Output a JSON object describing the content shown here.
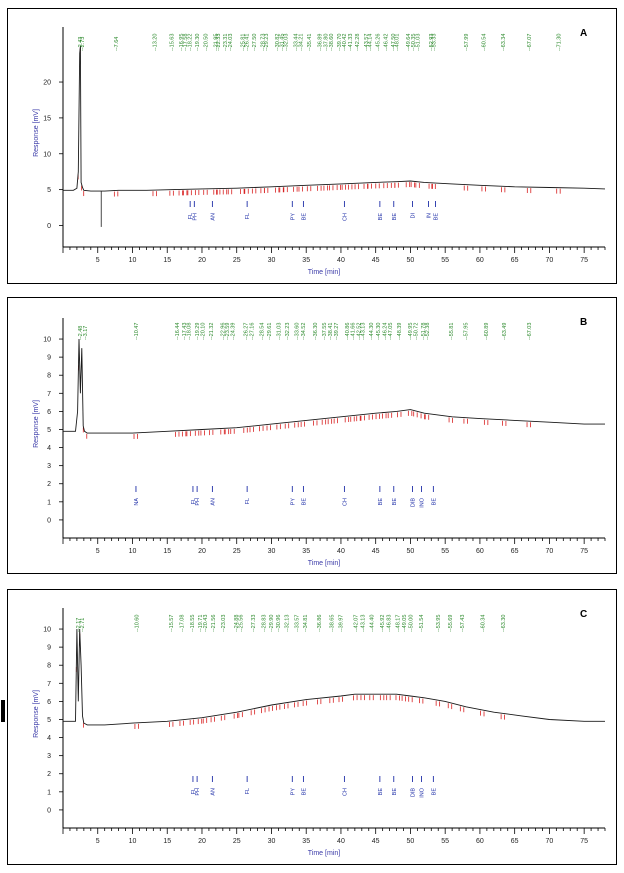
{
  "colors": {
    "trace": "#1a1a1a",
    "peak_label": "#2e8b2e",
    "integration_mark": "#d82020",
    "compound_label": "#1f2fa8",
    "axis_label": "#3a3aa8",
    "axis": "#000000"
  },
  "chart_data": [
    {
      "type": "line",
      "panel_label": "A",
      "xlabel": "Time [min]",
      "ylabel": "Response [mV]",
      "xlim": [
        0,
        78
      ],
      "ylim": [
        -3,
        26
      ],
      "x_ticks": [
        5,
        10,
        15,
        20,
        25,
        30,
        35,
        40,
        45,
        50,
        55,
        60,
        65,
        70,
        75
      ],
      "y_ticks": [
        0,
        5,
        10,
        15,
        20
      ],
      "series": [
        {
          "x": [
            0,
            1.5,
            2.0,
            2.2,
            2.4,
            2.5,
            2.6,
            2.8,
            3.0,
            4,
            6,
            8,
            12,
            16,
            20,
            25,
            30,
            35,
            40,
            45,
            48,
            50,
            52,
            56,
            60,
            65,
            70,
            75,
            78
          ],
          "y": [
            4.9,
            4.9,
            5.2,
            7.5,
            24,
            25,
            6,
            5.3,
            4.9,
            4.8,
            4.8,
            4.9,
            4.9,
            5.0,
            5.1,
            5.2,
            5.4,
            5.6,
            5.8,
            6.0,
            6.1,
            6.2,
            6.0,
            5.8,
            5.6,
            5.4,
            5.3,
            5.2,
            5.1
          ]
        }
      ],
      "negative_spike": {
        "x": 5.5,
        "y": -0.2
      },
      "peak_labels": [
        "--2.43",
        "--2.73",
        "--7.64",
        "--13.20",
        "--15.63",
        "--16.95",
        "--17.58",
        "--18.22",
        "--19.30",
        "--20.50",
        "--21.95",
        "--22.33",
        "--23.31",
        "--24.03",
        "--25.81",
        "--26.41",
        "--27.50",
        "--28.73",
        "--29.23",
        "--30.82",
        "--31.45",
        "--32.03",
        "--33.44",
        "--34.21",
        "--35.41",
        "--36.89",
        "--37.80",
        "--38.60",
        "--39.70",
        "--40.42",
        "--41.33",
        "--42.28",
        "--43.57",
        "--44.14",
        "--45.26",
        "--46.42",
        "--47.50",
        "--48.01",
        "--49.64",
        "--50.35",
        "--51.03",
        "--52.93",
        "--53.33",
        "--57.99",
        "--60.54",
        "--63.34",
        "--67.07",
        "--71.30"
      ],
      "peak_times": [
        2.43,
        2.73,
        7.64,
        13.2,
        15.63,
        16.95,
        17.58,
        18.22,
        19.3,
        20.5,
        21.95,
        22.33,
        23.31,
        24.03,
        25.81,
        26.41,
        27.5,
        28.73,
        29.23,
        30.82,
        31.45,
        32.03,
        33.44,
        34.21,
        35.41,
        36.89,
        37.8,
        38.6,
        39.7,
        40.42,
        41.33,
        42.28,
        43.57,
        44.14,
        45.26,
        46.42,
        47.5,
        48.01,
        49.64,
        50.35,
        51.03,
        52.93,
        53.33,
        57.99,
        60.54,
        63.34,
        67.07,
        71.3
      ],
      "compounds": [
        {
          "label": "FL",
          "x": 18.3
        },
        {
          "label": "PH",
          "x": 18.9
        },
        {
          "label": "AN",
          "x": 21.5
        },
        {
          "label": "FL",
          "x": 26.5
        },
        {
          "label": "PY",
          "x": 33.0
        },
        {
          "label": "BE",
          "x": 34.6
        },
        {
          "label": "CH",
          "x": 40.5
        },
        {
          "label": "BE",
          "x": 45.6
        },
        {
          "label": "BE",
          "x": 47.6
        },
        {
          "label": "DI",
          "x": 50.3
        },
        {
          "label": "IN",
          "x": 52.6
        },
        {
          "label": "BE",
          "x": 53.6
        }
      ]
    },
    {
      "type": "line",
      "panel_label": "B",
      "xlabel": "Time [min]",
      "ylabel": "Response [mV]",
      "xlim": [
        0,
        78
      ],
      "ylim": [
        -1,
        10.5
      ],
      "x_ticks": [
        5,
        10,
        15,
        20,
        25,
        30,
        35,
        40,
        45,
        50,
        55,
        60,
        65,
        70,
        75
      ],
      "y_ticks": [
        0,
        1,
        2,
        3,
        4,
        5,
        6,
        7,
        8,
        9,
        10
      ],
      "series": [
        {
          "x": [
            0,
            1.8,
            2.1,
            2.3,
            2.5,
            2.7,
            2.9,
            3.1,
            3.5,
            6,
            10,
            15,
            20,
            25,
            30,
            35,
            40,
            45,
            48,
            50,
            52,
            56,
            60,
            65,
            70,
            75,
            78
          ],
          "y": [
            4.9,
            4.9,
            6,
            10,
            7,
            9.5,
            5.2,
            4.9,
            4.8,
            4.8,
            4.8,
            4.9,
            5.0,
            5.1,
            5.3,
            5.5,
            5.7,
            5.9,
            6.0,
            6.1,
            5.9,
            5.7,
            5.6,
            5.5,
            5.4,
            5.3,
            5.3
          ]
        }
      ],
      "peak_labels": [
        "--2.48",
        "--3.17",
        "--10.47",
        "--16.44",
        "--17.43",
        "--18.08",
        "--19.29",
        "--20.10",
        "--21.32",
        "--22.96",
        "--23.59",
        "--24.39",
        "--26.27",
        "--27.16",
        "--28.54",
        "--29.61",
        "--31.03",
        "--32.23",
        "--33.60",
        "--34.52",
        "--36.30",
        "--37.55",
        "--38.41",
        "--39.27",
        "--40.86",
        "--41.66",
        "--42.52",
        "--43.13",
        "--44.30",
        "--45.30",
        "--46.24",
        "--47.05",
        "--48.39",
        "--49.95",
        "--50.72",
        "--51.78",
        "--52.38",
        "--55.81",
        "--57.95",
        "--60.89",
        "--63.49",
        "--67.03"
      ],
      "peak_times": [
        2.48,
        3.17,
        10.47,
        16.44,
        17.43,
        18.08,
        19.29,
        20.1,
        21.32,
        22.96,
        23.59,
        24.39,
        26.27,
        27.16,
        28.54,
        29.61,
        31.03,
        32.23,
        33.6,
        34.52,
        36.3,
        37.55,
        38.41,
        39.27,
        40.86,
        41.66,
        42.52,
        43.13,
        44.3,
        45.3,
        46.24,
        47.05,
        48.39,
        49.95,
        50.72,
        51.78,
        52.38,
        55.81,
        57.95,
        60.89,
        63.49,
        67.03
      ],
      "compounds": [
        {
          "label": "NA",
          "x": 10.5
        },
        {
          "label": "FL",
          "x": 18.7
        },
        {
          "label": "PH",
          "x": 19.3
        },
        {
          "label": "AN",
          "x": 21.5
        },
        {
          "label": "FL",
          "x": 26.5
        },
        {
          "label": "PY",
          "x": 33.0
        },
        {
          "label": "BE",
          "x": 34.6
        },
        {
          "label": "CH",
          "x": 40.5
        },
        {
          "label": "BE",
          "x": 45.6
        },
        {
          "label": "BE",
          "x": 47.6
        },
        {
          "label": "DIB",
          "x": 50.3
        },
        {
          "label": "INO",
          "x": 51.6
        },
        {
          "label": "BE",
          "x": 53.3
        }
      ]
    },
    {
      "type": "line",
      "panel_label": "C",
      "xlabel": "Time [min]",
      "ylabel": "Response [mV]",
      "xlim": [
        0,
        78
      ],
      "ylim": [
        -1,
        10.5
      ],
      "x_ticks": [
        5,
        10,
        15,
        20,
        25,
        30,
        35,
        40,
        45,
        50,
        55,
        60,
        65,
        70,
        75
      ],
      "y_ticks": [
        0,
        1,
        2,
        3,
        4,
        5,
        6,
        7,
        8,
        9,
        10
      ],
      "series": [
        {
          "x": [
            0,
            1.8,
            2.0,
            2.2,
            2.4,
            2.6,
            2.8,
            3.0,
            3.5,
            6,
            10,
            15,
            20,
            25,
            30,
            35,
            40,
            42,
            45,
            48,
            50,
            52,
            55,
            58,
            62,
            66,
            70,
            75,
            78
          ],
          "y": [
            4.9,
            4.9,
            10,
            6,
            10,
            8,
            5.2,
            4.8,
            4.7,
            4.7,
            4.8,
            4.9,
            5.1,
            5.4,
            5.8,
            6.1,
            6.3,
            6.4,
            6.4,
            6.4,
            6.3,
            6.2,
            6.0,
            5.7,
            5.4,
            5.2,
            5.0,
            4.9,
            4.9
          ]
        }
      ],
      "peak_labels": [
        "--2.17",
        "--2.71",
        "--10.60",
        "--15.57",
        "--17.08",
        "--18.55",
        "--19.71",
        "--20.43",
        "--21.56",
        "--23.03",
        "--24.88",
        "--25.56",
        "--27.33",
        "--28.83",
        "--29.90",
        "--30.96",
        "--32.13",
        "--33.57",
        "--34.81",
        "--36.86",
        "--38.65",
        "--39.97",
        "--42.07",
        "--43.13",
        "--44.40",
        "--45.92",
        "--46.83",
        "--48.17",
        "--49.05",
        "--50.00",
        "--51.54",
        "--53.95",
        "--55.69",
        "--57.43",
        "--60.34",
        "--63.30"
      ],
      "peak_times": [
        2.17,
        2.71,
        10.6,
        15.57,
        17.08,
        18.55,
        19.71,
        20.43,
        21.56,
        23.03,
        24.88,
        25.56,
        27.33,
        28.83,
        29.9,
        30.96,
        32.13,
        33.57,
        34.81,
        36.86,
        38.65,
        39.97,
        42.07,
        43.13,
        44.4,
        45.92,
        46.83,
        48.17,
        49.05,
        50.0,
        51.54,
        53.95,
        55.69,
        57.43,
        60.34,
        63.3
      ],
      "compounds": [
        {
          "label": "FL",
          "x": 18.7
        },
        {
          "label": "PH",
          "x": 19.3
        },
        {
          "label": "AN",
          "x": 21.5
        },
        {
          "label": "FL",
          "x": 26.5
        },
        {
          "label": "PY",
          "x": 33.0
        },
        {
          "label": "BE",
          "x": 34.6
        },
        {
          "label": "CH",
          "x": 40.5
        },
        {
          "label": "BE",
          "x": 45.6
        },
        {
          "label": "BE",
          "x": 47.6
        },
        {
          "label": "DIB",
          "x": 50.3
        },
        {
          "label": "INO",
          "x": 51.6
        },
        {
          "label": "BE",
          "x": 53.3
        }
      ]
    }
  ]
}
